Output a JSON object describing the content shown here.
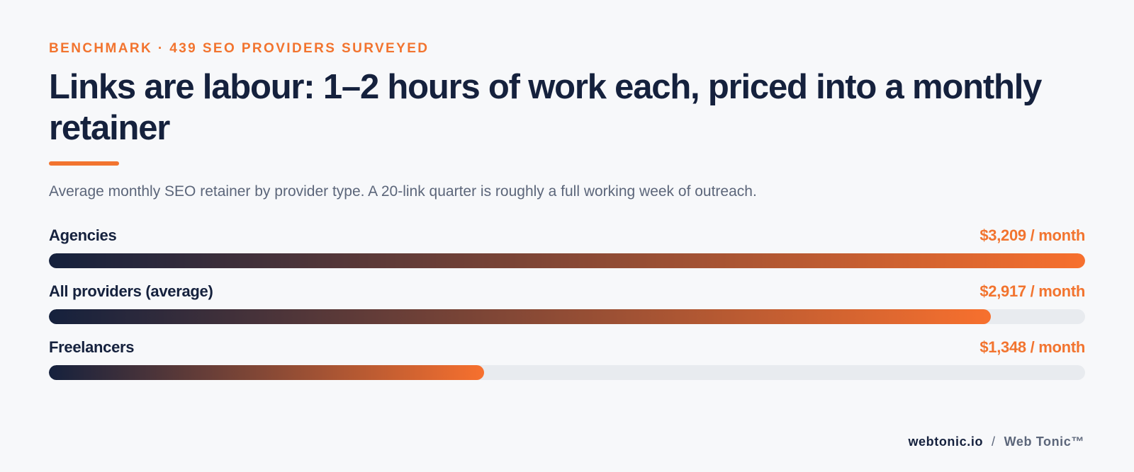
{
  "header": {
    "eyebrow": "BENCHMARK · 439 SEO PROVIDERS SURVEYED",
    "title": "Links are labour: 1–2 hours of work each, priced into a monthly retainer",
    "subtitle": "Average monthly SEO retainer by provider type. A 20-link quarter is roughly a full working week of outreach."
  },
  "colors": {
    "accent": "#f2742f",
    "navy": "#15213d",
    "track": "#e8ebef"
  },
  "chart_data": {
    "type": "bar",
    "orientation": "horizontal",
    "title": "Links are labour: 1–2 hours of work each, priced into a monthly retainer",
    "categories": [
      "Agencies",
      "All providers (average)",
      "Freelancers"
    ],
    "values": [
      3209,
      2917,
      1348
    ],
    "value_labels": [
      "$3,209 / month",
      "$2,917 / month",
      "$1,348 / month"
    ],
    "xlim": [
      0,
      3209
    ],
    "grid": false,
    "legend": "none"
  },
  "footer": {
    "domain": "webtonic.io",
    "separator": "/",
    "brand": "Web Tonic™"
  }
}
